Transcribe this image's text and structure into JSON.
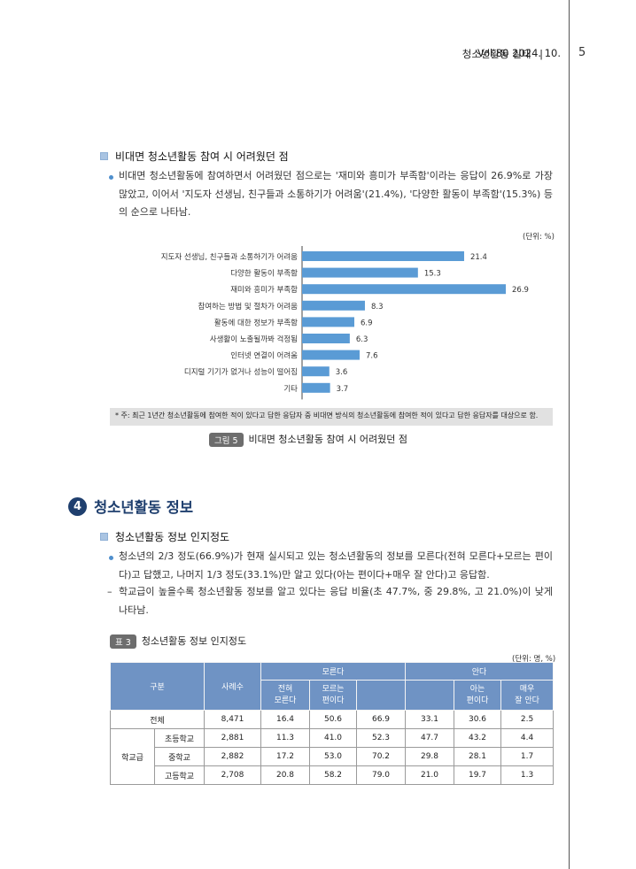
{
  "header": {
    "title": "청소년활동 실태",
    "separator": "|",
    "vol": "Vol.80  2024. 10.",
    "page": "5"
  },
  "section1": {
    "subhead": "비대면 청소년활동 참여 시 어려웠던 점",
    "bullet1": "비대면 청소년활동에 참여하면서 어려웠던 점으로는 '재미와 흥미가 부족함'이라는 응답이 26.9%로 가장 많았고, 이어서 '지도자 선생님, 친구들과 소통하기가 어려움'(21.4%), '다양한 활동이 부족함'(15.3%) 등의 순으로 나타남."
  },
  "chart_data": {
    "type": "bar",
    "orientation": "horizontal",
    "unit": "(단위: %)",
    "categories": [
      "지도자 선생님, 친구들과 소통하기가 어려움",
      "다양한 활동이 부족함",
      "재미와 흥미가 부족함",
      "참여하는 방법 및 절차가 어려움",
      "활동에 대한 정보가 부족함",
      "사생활이 노출될까봐 걱정됨",
      "인터넷 연결이 어려움",
      "디지털 기기가 없거나 성능이 떨어짐",
      "기타"
    ],
    "values": [
      21.4,
      15.3,
      26.9,
      8.3,
      6.9,
      6.3,
      7.6,
      3.6,
      3.7
    ],
    "xlim": [
      0,
      30
    ],
    "bar_color": "#5a9bd5"
  },
  "note": "* 주: 최근 1년간 청소년활동에 참여한 적이 있다고 답한 응답자 중 비대면 방식의 청소년활동에 참여한 적이 있다고 답한 응답자를 대상으로 함.",
  "figure": {
    "badge": "그림 5",
    "caption": "비대면 청소년활동 참여 시 어려웠던 점"
  },
  "section4": {
    "num": "4",
    "title": "청소년활동 정보",
    "subhead": "청소년활동 정보 인지정도",
    "bullet1": "청소년의 2/3 정도(66.9%)가 현재 실시되고 있는 청소년활동의 정보를 모른다(전혀 모른다+모르는 편이다)고 답했고, 나머지 1/3 정도(33.1%)만 알고 있다(아는 편이다+매우 잘 안다)고 응답함.",
    "dash1": "학교급이 높을수록 청소년활동 정보를 알고 있다는 응답 비율(초 47.7%, 중 29.8%, 고 21.0%)이 낮게 나타남.",
    "dash_mark": "–"
  },
  "table": {
    "badge": "표 3",
    "caption": "청소년활동 정보 인지정도",
    "unit": "(단위: 명, %)",
    "headers": {
      "category": "구분",
      "cases": "사례수",
      "dont_know": "모른다",
      "know": "안다",
      "not_at_all_l1": "전혀",
      "not_at_all_l2": "모른다",
      "rather_not_l1": "모르는",
      "rather_not_l2": "편이다",
      "rather_know_l1": "아는",
      "rather_know_l2": "편이다",
      "very_well_l1": "매우",
      "very_well_l2": "잘 안다"
    },
    "school_group": "학교급",
    "rows": [
      {
        "label": "전체",
        "n": "8,471",
        "a": "16.4",
        "b": "50.6",
        "dk": "66.9",
        "k": "33.1",
        "c": "30.6",
        "d": "2.5"
      },
      {
        "label": "초등학교",
        "n": "2,881",
        "a": "11.3",
        "b": "41.0",
        "dk": "52.3",
        "k": "47.7",
        "c": "43.2",
        "d": "4.4"
      },
      {
        "label": "중학교",
        "n": "2,882",
        "a": "17.2",
        "b": "53.0",
        "dk": "70.2",
        "k": "29.8",
        "c": "28.1",
        "d": "1.7"
      },
      {
        "label": "고등학교",
        "n": "2,708",
        "a": "20.8",
        "b": "58.2",
        "dk": "79.0",
        "k": "21.0",
        "c": "19.7",
        "d": "1.3"
      }
    ]
  }
}
